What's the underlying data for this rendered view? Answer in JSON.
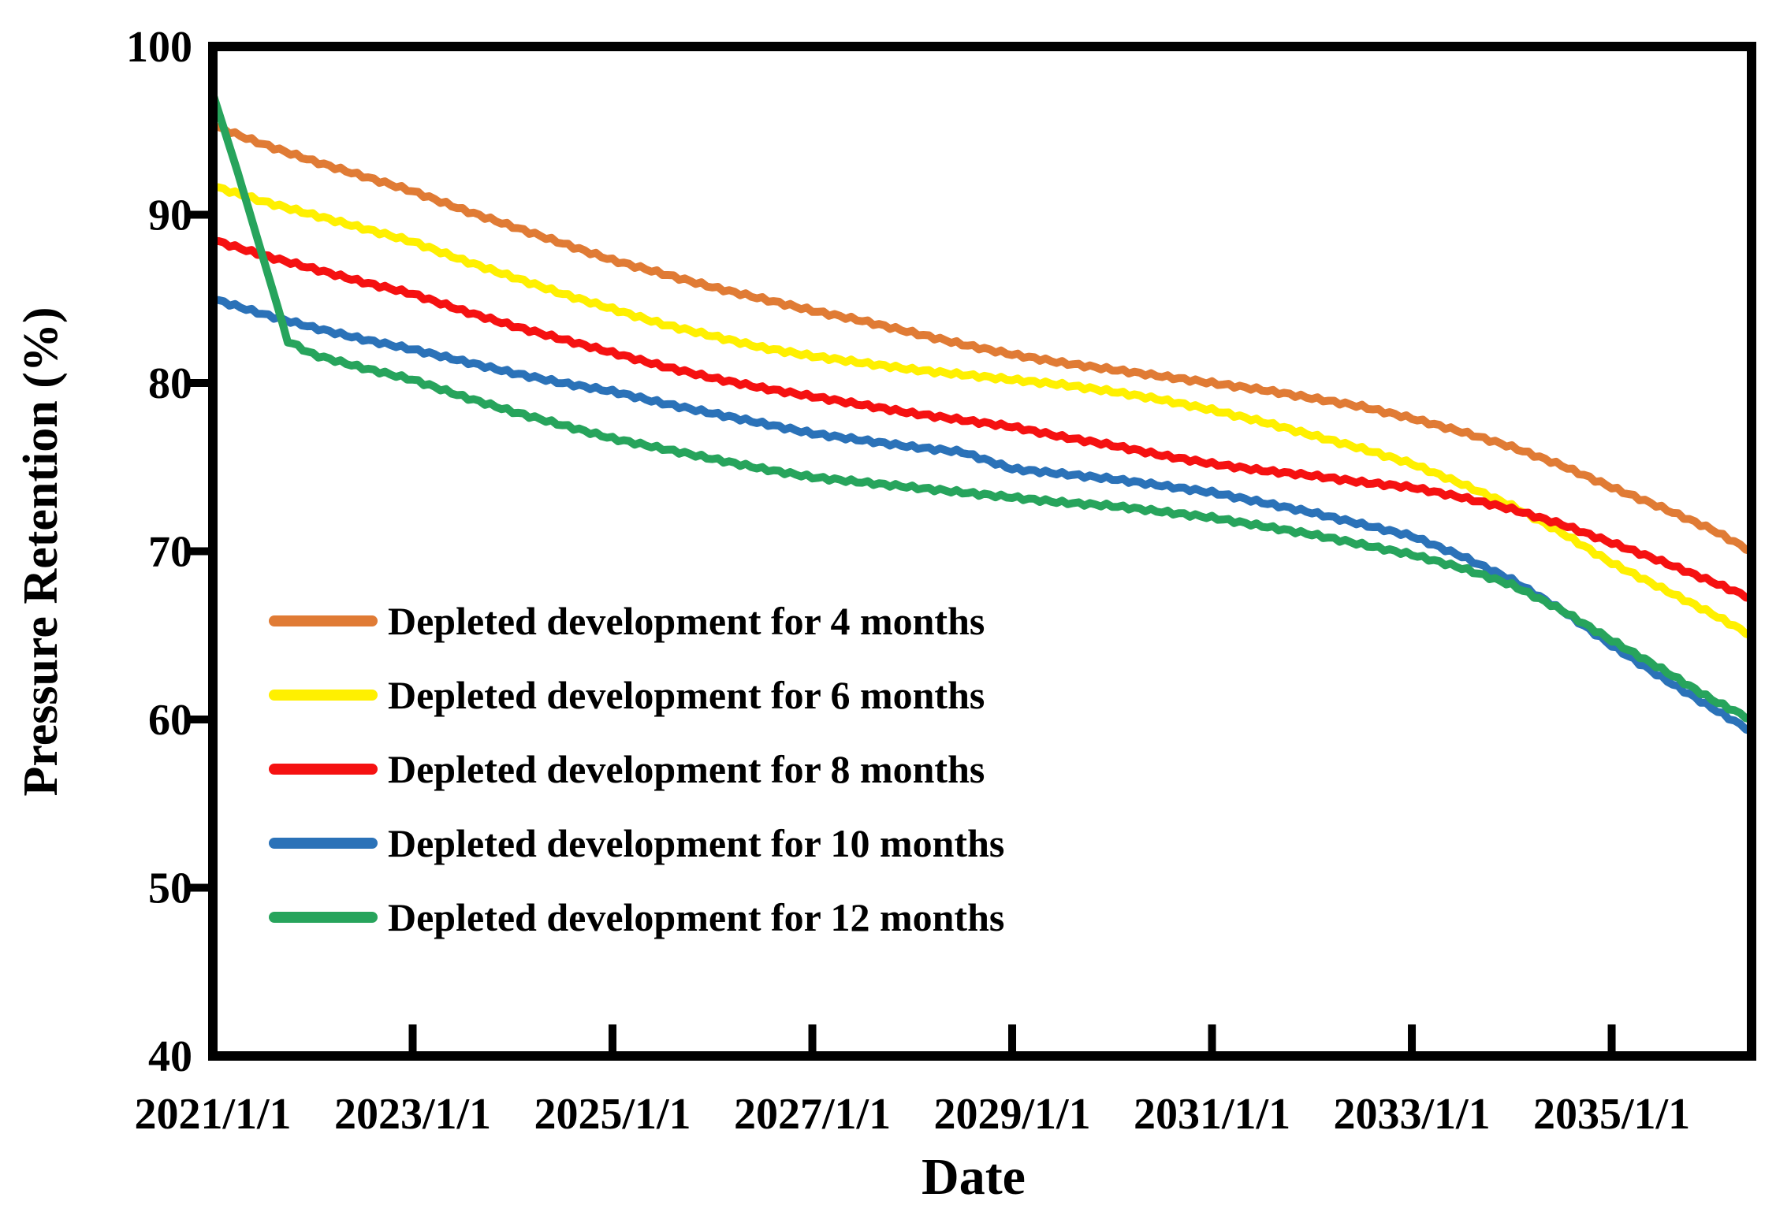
{
  "page": {
    "background": "#FFFFFF"
  },
  "chart_data": {
    "type": "line",
    "title": "",
    "xlabel": "Date",
    "ylabel": "Pressure Retention  (%)",
    "grid": false,
    "legend_position": "inside-left-middle",
    "x_axis": {
      "min": 2021.0,
      "max": 2036.4,
      "tick_values": [
        2021,
        2023,
        2025,
        2027,
        2029,
        2031,
        2033,
        2035
      ],
      "tick_labels": [
        "2021/1/1",
        "2023/1/1",
        "2025/1/1",
        "2027/1/1",
        "2029/1/1",
        "2031/1/1",
        "2033/1/1",
        "2035/1/1"
      ]
    },
    "y_axis": {
      "min": 40,
      "max": 100,
      "tick_values": [
        40,
        50,
        60,
        70,
        80,
        90,
        100
      ],
      "tick_labels": [
        "40",
        "50",
        "60",
        "70",
        "80",
        "90",
        "100"
      ],
      "unit": "%"
    },
    "series": [
      {
        "name": "Depleted development for 4 months",
        "color": "#E07B35",
        "x": [
          2021,
          2021.5,
          2022,
          2022.5,
          2023,
          2023.5,
          2024,
          2024.5,
          2025,
          2025.5,
          2026,
          2026.5,
          2027,
          2027.5,
          2028,
          2028.5,
          2029,
          2029.5,
          2030,
          2030.5,
          2031,
          2031.5,
          2032,
          2032.5,
          2033,
          2033.5,
          2034,
          2034.5,
          2035,
          2035.5,
          2036,
          2036.4
        ],
        "y": [
          95.3,
          94.2,
          93.2,
          92.3,
          91.4,
          90.3,
          89.3,
          88.3,
          87.3,
          86.5,
          85.7,
          85.0,
          84.3,
          83.7,
          83.0,
          82.3,
          81.7,
          81.2,
          80.8,
          80.4,
          80.0,
          79.6,
          79.1,
          78.6,
          77.9,
          77.1,
          76.2,
          75.1,
          73.8,
          72.6,
          71.3,
          70.0
        ]
      },
      {
        "name": "Depleted development for 6 months",
        "color": "#FFF000",
        "x": [
          2021,
          2021.5,
          2022,
          2022.5,
          2023,
          2023.5,
          2024,
          2024.5,
          2025,
          2025.5,
          2026,
          2026.5,
          2027,
          2027.5,
          2028,
          2028.5,
          2029,
          2029.5,
          2030,
          2030.5,
          2031,
          2031.5,
          2032,
          2032.5,
          2033,
          2033.5,
          2034,
          2034.5,
          2035,
          2035.5,
          2036,
          2036.4
        ],
        "y": [
          91.7,
          90.8,
          90.0,
          89.2,
          88.4,
          87.3,
          86.3,
          85.3,
          84.4,
          83.5,
          82.8,
          82.1,
          81.6,
          81.2,
          80.8,
          80.5,
          80.2,
          79.9,
          79.5,
          79.0,
          78.4,
          77.7,
          76.9,
          76.1,
          75.2,
          74.0,
          72.7,
          71.1,
          69.3,
          67.8,
          66.3,
          65.0
        ]
      },
      {
        "name": "Depleted development for 8 months",
        "color": "#F51111",
        "x": [
          2021,
          2021.5,
          2022,
          2022.5,
          2023,
          2023.5,
          2024,
          2024.5,
          2025,
          2025.5,
          2026,
          2026.5,
          2027,
          2027.5,
          2028,
          2028.5,
          2029,
          2029.5,
          2030,
          2030.5,
          2031,
          2031.5,
          2032,
          2032.5,
          2033,
          2033.5,
          2034,
          2034.5,
          2035,
          2035.5,
          2036,
          2036.4
        ],
        "y": [
          88.5,
          87.6,
          86.8,
          86.0,
          85.3,
          84.3,
          83.4,
          82.6,
          81.8,
          81.0,
          80.3,
          79.7,
          79.2,
          78.7,
          78.2,
          77.8,
          77.4,
          76.8,
          76.3,
          75.7,
          75.2,
          74.8,
          74.5,
          74.1,
          73.8,
          73.2,
          72.5,
          71.6,
          70.5,
          69.4,
          68.2,
          67.2
        ]
      },
      {
        "name": "Depleted development for 10 months",
        "color": "#2B72B8",
        "x": [
          2021,
          2021.5,
          2022,
          2022.5,
          2023,
          2023.5,
          2024,
          2024.5,
          2025,
          2025.5,
          2026,
          2026.5,
          2027,
          2027.5,
          2028,
          2028.5,
          2029,
          2029.5,
          2030,
          2030.5,
          2031,
          2031.5,
          2032,
          2032.5,
          2033,
          2033.5,
          2034,
          2034.5,
          2035,
          2035.5,
          2036,
          2036.4
        ],
        "y": [
          85.0,
          84.1,
          83.3,
          82.6,
          82.0,
          81.3,
          80.6,
          80.0,
          79.5,
          78.8,
          78.2,
          77.6,
          77.0,
          76.6,
          76.2,
          75.9,
          74.9,
          74.6,
          74.3,
          73.9,
          73.5,
          72.9,
          72.3,
          71.6,
          70.9,
          69.7,
          68.3,
          66.5,
          64.4,
          62.5,
          60.7,
          59.3
        ]
      },
      {
        "name": "Depleted development for 12 months",
        "color": "#27A45C",
        "x": [
          2021,
          2021.25,
          2021.5,
          2021.75,
          2022,
          2022.5,
          2023,
          2023.5,
          2024,
          2024.5,
          2025,
          2025.5,
          2026,
          2026.5,
          2027,
          2027.5,
          2028,
          2028.5,
          2029,
          2029.5,
          2030,
          2030.5,
          2031,
          2031.5,
          2032,
          2032.5,
          2033,
          2033.5,
          2034,
          2034.5,
          2035,
          2035.5,
          2036,
          2036.4
        ],
        "y": [
          97.2,
          92.5,
          87.5,
          82.5,
          81.7,
          80.9,
          80.2,
          79.2,
          78.3,
          77.5,
          76.7,
          76.1,
          75.5,
          74.9,
          74.4,
          74.1,
          73.8,
          73.5,
          73.2,
          72.9,
          72.7,
          72.35,
          72.0,
          71.5,
          71.0,
          70.4,
          69.8,
          69.0,
          68.0,
          66.5,
          64.7,
          63.0,
          61.2,
          60.0
        ]
      }
    ]
  }
}
